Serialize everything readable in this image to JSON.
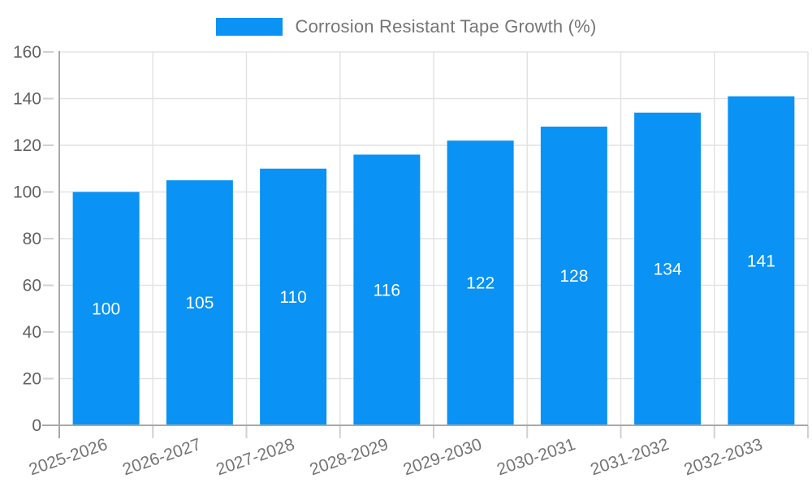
{
  "legend": {
    "label": "Corrosion Resistant Tape Growth (%)"
  },
  "colors": {
    "bar": "#0A92F4",
    "grid": "#e3e3e3",
    "axis": "#a8a8a8",
    "tick": "#d0d0d0",
    "y_label": "#616161",
    "x_label": "#757575",
    "bar_label": "#ffffff",
    "legend_text": "#757575"
  },
  "chart_data": {
    "type": "bar",
    "title": "Corrosion Resistant Tape Growth (%)",
    "categories": [
      "2025-2026",
      "2026-2027",
      "2027-2028",
      "2028-2029",
      "2029-2030",
      "2030-2031",
      "2031-2032",
      "2032-2033"
    ],
    "values": [
      100,
      105,
      110,
      116,
      122,
      128,
      134,
      141
    ],
    "xlabel": "",
    "ylabel": "",
    "ylim": [
      0,
      160
    ],
    "yticks": [
      0,
      20,
      40,
      60,
      80,
      100,
      120,
      140,
      160
    ],
    "grid": true,
    "legend_position": "top",
    "bar_label_color": "white",
    "x_label_rotation_deg": -19
  }
}
